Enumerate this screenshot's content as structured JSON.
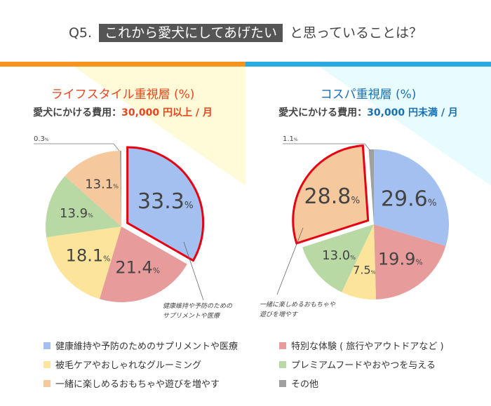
{
  "header": {
    "prefix": "Q5.",
    "highlight": "これから愛犬にしてあげたい",
    "suffix": "と思っていることは？"
  },
  "colors": {
    "left_bar": "#f7931e",
    "right_bar": "#29abe2",
    "left_bg": "#fffbd9",
    "right_bg": "#e8fcff",
    "left_title": "#e8461e",
    "right_title": "#1a6fb5",
    "highlight_border": "#e60012"
  },
  "left": {
    "title": "ライフスタイル重視層 (%)",
    "cost_label": "愛犬にかける費用：",
    "cost_value": "30,000 円以上 / 月",
    "callout": [
      "健康維持や予防のための",
      "サプリメントや医療"
    ]
  },
  "right": {
    "title": "コスパ重視層 (%)",
    "cost_label": "愛犬にかける費用：",
    "cost_value": "30,000 円未満 / 月",
    "callout": [
      "一緒に楽しめるおもちゃや",
      "遊びを増やす"
    ]
  },
  "chart_data": [
    {
      "type": "pie",
      "title": "ライフスタイル重視層 (%)",
      "categories": [
        "健康維持や予防のためのサプリメントや医療",
        "特別な体験 ( 旅行やアウトドアなど )",
        "被毛ケアやおしゃれなグルーミング",
        "プレミアムフードやおやつを与える",
        "一緒に楽しめるおもちゃや遊びを増やす",
        "その他"
      ],
      "values": [
        33.3,
        21.4,
        18.1,
        13.9,
        13.1,
        0.3
      ],
      "highlighted": "健康維持や予防のためのサプリメントや医療"
    },
    {
      "type": "pie",
      "title": "コスパ重視層 (%)",
      "categories": [
        "健康維持や予防のためのサプリメントや医療",
        "特別な体験 ( 旅行やアウトドアなど )",
        "被毛ケアやおしゃれなグルーミング",
        "プレミアムフードやおやつを与える",
        "一緒に楽しめるおもちゃや遊びを増やす",
        "その他"
      ],
      "values": [
        29.6,
        19.9,
        7.5,
        13.0,
        28.8,
        1.1
      ],
      "highlighted": "一緒に楽しめるおもちゃや遊びを増やす"
    }
  ],
  "legend": [
    {
      "label": "健康維持や予防のためのサプリメントや医療",
      "color": "#a3c0f0"
    },
    {
      "label": "特別な体験 ( 旅行やアウトドアなど )",
      "color": "#e89b9b"
    },
    {
      "label": "被毛ケアやおしゃれなグルーミング",
      "color": "#fce49b"
    },
    {
      "label": "プレミアムフードやおやつを与える",
      "color": "#b8d8a4"
    },
    {
      "label": "一緒に楽しめるおもちゃや遊びを増やす",
      "color": "#f6c89d"
    },
    {
      "label": "その他",
      "color": "#a0a0a0"
    }
  ],
  "pct_unit": "%"
}
